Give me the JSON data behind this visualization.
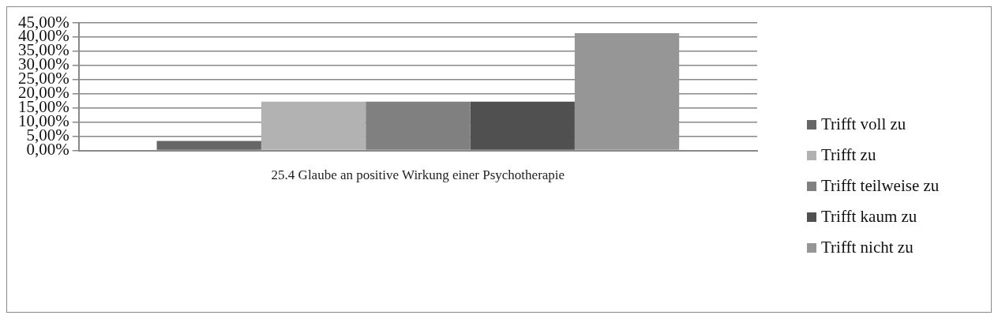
{
  "chart_data": {
    "type": "bar",
    "categories": [
      "25.4 Glaube an positive Wirkung einer Psychotherapie"
    ],
    "series": [
      {
        "name": "Trifft voll zu",
        "color": "#666666",
        "values": [
          3.4
        ]
      },
      {
        "name": "Trifft zu",
        "color": "#b2b2b2",
        "values": [
          17.2
        ]
      },
      {
        "name": "Trifft teilweise zu",
        "color": "#808080",
        "values": [
          17.2
        ]
      },
      {
        "name": "Trifft kaum zu",
        "color": "#505050",
        "values": [
          17.2
        ]
      },
      {
        "name": "Trifft nicht zu",
        "color": "#969696",
        "values": [
          41.4
        ]
      }
    ],
    "ylim": [
      0,
      45
    ],
    "yticks": [
      {
        "value": 0,
        "label": "0,00%"
      },
      {
        "value": 5,
        "label": "5,00%"
      },
      {
        "value": 10,
        "label": "10,00%"
      },
      {
        "value": 15,
        "label": "15,00%"
      },
      {
        "value": 20,
        "label": "20,00%"
      },
      {
        "value": 25,
        "label": "25,00%"
      },
      {
        "value": 30,
        "label": "30,00%"
      },
      {
        "value": 35,
        "label": "35,00%"
      },
      {
        "value": 40,
        "label": "40,00%"
      },
      {
        "value": 45,
        "label": "45,00%"
      }
    ],
    "grid": "y",
    "legend": "right"
  }
}
